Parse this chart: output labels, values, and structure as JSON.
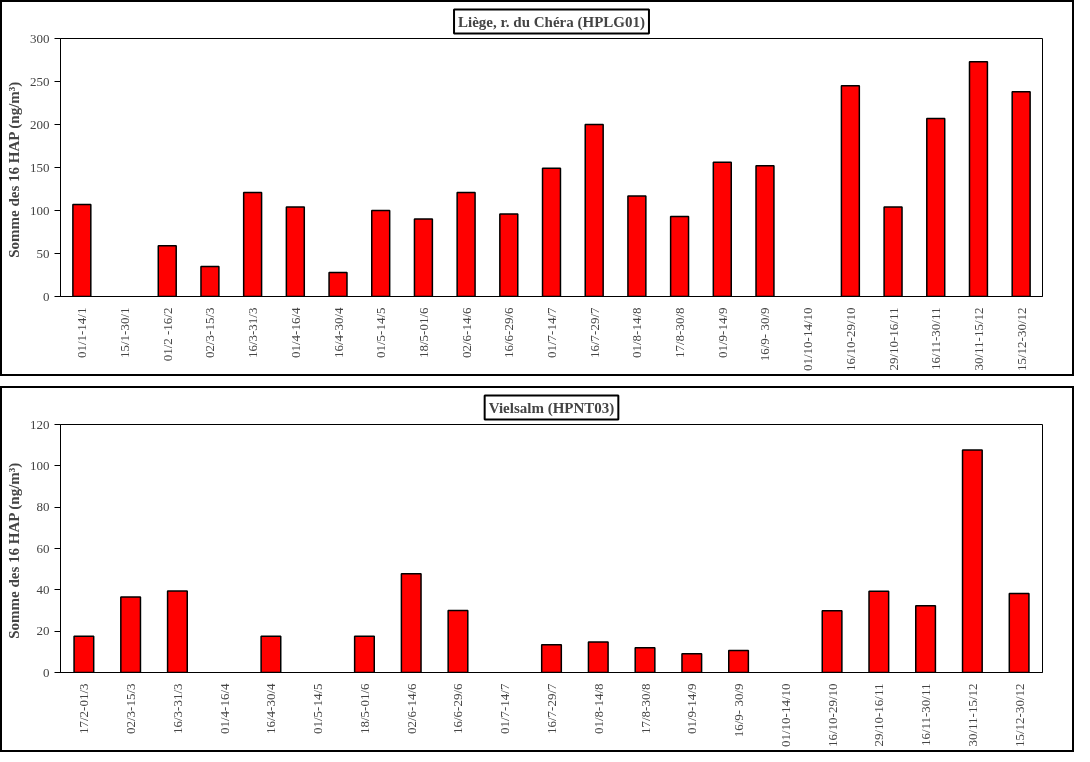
{
  "chart_data": [
    {
      "type": "bar",
      "title": "Liège, r. du Chéra (HPLG01)",
      "ylabel": "Somme des 16  HAP (ng/m³)",
      "categories": [
        "01/1-14/1",
        "15/1-30/1",
        "01/2 -16/2",
        "02/3-15/3",
        "16/3-31/3",
        "01/4-16/4",
        "16/4-30/4",
        "01/5-14/5",
        "18/5-01/6",
        "02/6-14/6",
        "16/6-29/6",
        "01/7-14/7",
        "16/7-29/7",
        "01/8-14/8",
        "17/8-30/8",
        "01/9-14/9",
        "16/9- 30/9",
        "01/10-14/10",
        "16/10-29/10",
        "29/10-16/11",
        "16/11-30/11",
        "30/11-15/12",
        "15/12-30/12"
      ],
      "values": [
        107,
        null,
        59,
        35,
        121,
        104,
        28,
        100,
        90,
        121,
        96,
        149,
        200,
        117,
        93,
        156,
        152,
        null,
        245,
        104,
        207,
        273,
        238
      ],
      "color": "#ff0000",
      "ylim": [
        0,
        300
      ],
      "yticks": [
        0,
        50,
        100,
        150,
        200,
        250,
        300
      ],
      "grid": false
    },
    {
      "type": "bar",
      "title": "Vielsalm (HPNT03)",
      "ylabel": "Somme des 16  HAP (ng/m³)",
      "categories": [
        "17/2-01/3",
        "02/3-15/3",
        "16/3-31/3",
        "01/4-16/4",
        "16/4-30/4",
        "01/5-14/5",
        "18/5-01/6",
        "02/6-14/6",
        "16/6-29/6",
        "01/7-14/7",
        "16/7-29/7",
        "01/8-14/8",
        "17/8-30/8",
        "01/9-14/9",
        "16/9- 30/9",
        "01/10-14/10",
        "16/10-29/10",
        "29/10-16/11",
        "16/11-30/11",
        "30/11-15/12",
        "15/12-30/12"
      ],
      "values": [
        17.6,
        36.5,
        39.4,
        null,
        17.6,
        null,
        17.6,
        47.8,
        30,
        null,
        13.4,
        14.7,
        12,
        9.1,
        10.7,
        null,
        29.9,
        39.3,
        32.3,
        107.7,
        38.2
      ],
      "color": "#ff0000",
      "ylim": [
        0,
        120
      ],
      "yticks": [
        0,
        20,
        40,
        60,
        80,
        100,
        120
      ],
      "grid": false
    }
  ]
}
